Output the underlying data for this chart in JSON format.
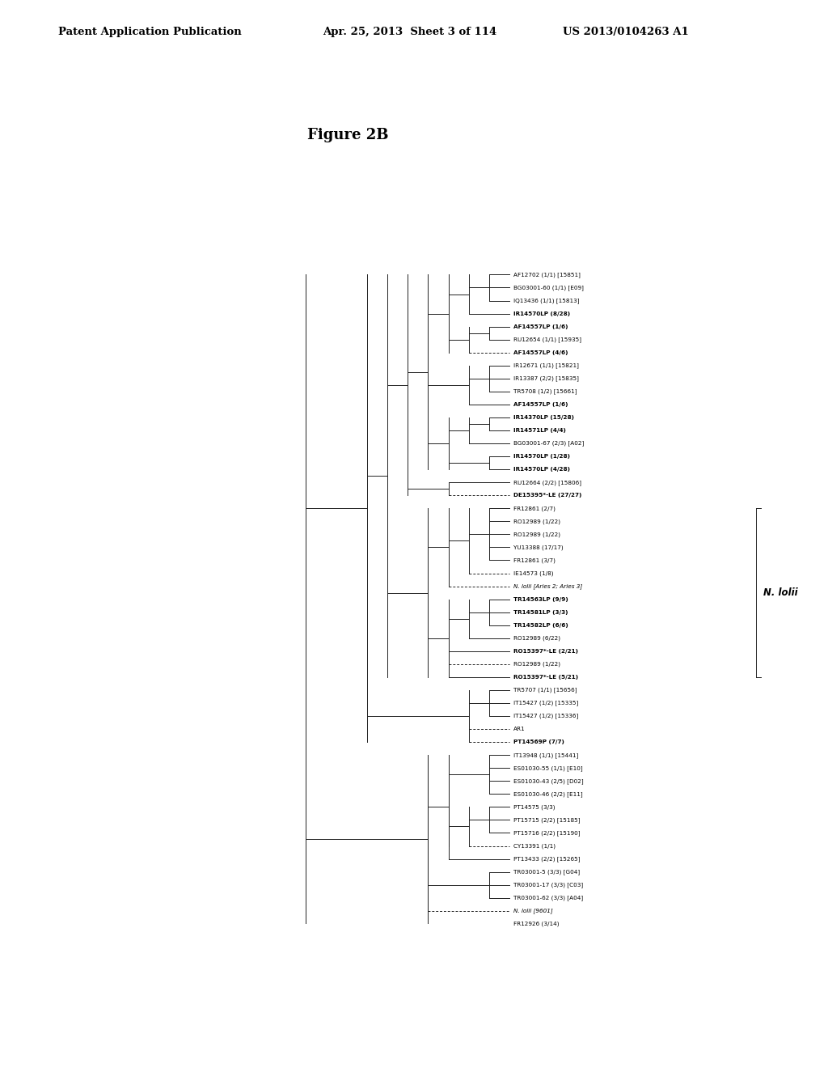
{
  "title": "Figure 2B",
  "header_left": "Patent Application Publication",
  "header_center": "Apr. 25, 2013  Sheet 3 of 114",
  "header_right": "US 2013/0104263 A1",
  "n_lolii_label": "N. lolii",
  "bg_color": "#c8c0ae",
  "line_color": "#222222",
  "taxa": [
    {
      "label": "AF12702 (1/1) [15851]",
      "bold": false,
      "italic": false,
      "dashed": false
    },
    {
      "label": "BG03001-60 (1/1) [E09]",
      "bold": false,
      "italic": false,
      "dashed": false
    },
    {
      "label": "IQ13436 (1/1) [15813]",
      "bold": false,
      "italic": false,
      "dashed": false
    },
    {
      "label": "IR14570LP (8/28)",
      "bold": true,
      "italic": false,
      "dashed": false
    },
    {
      "label": "AF14557LP (1/6)",
      "bold": true,
      "italic": false,
      "dashed": true
    },
    {
      "label": "RU12654 (1/1) [15935]",
      "bold": false,
      "italic": false,
      "dashed": false
    },
    {
      "label": "AF14557LP (4/6)",
      "bold": true,
      "italic": false,
      "dashed": false
    },
    {
      "label": "IR12671 (1/1) [15821]",
      "bold": false,
      "italic": false,
      "dashed": false
    },
    {
      "label": "IR13387 (2/2) [15835]",
      "bold": false,
      "italic": false,
      "dashed": false
    },
    {
      "label": "TR5708 (1/2) [15661]",
      "bold": false,
      "italic": false,
      "dashed": false
    },
    {
      "label": "AF14557LP (1/6)",
      "bold": true,
      "italic": false,
      "dashed": false
    },
    {
      "label": "IR14370LP (15/28)",
      "bold": true,
      "italic": false,
      "dashed": false
    },
    {
      "label": "IR14571LP (4/4)",
      "bold": true,
      "italic": false,
      "dashed": false
    },
    {
      "label": "BG03001-67 (2/3) [A02]",
      "bold": false,
      "italic": false,
      "dashed": false
    },
    {
      "label": "IR14570LP (1/28)",
      "bold": true,
      "italic": false,
      "dashed": false
    },
    {
      "label": "IR14570LP (4/28)",
      "bold": true,
      "italic": false,
      "dashed": false
    },
    {
      "label": "RU12664 (2/2) [15806]",
      "bold": false,
      "italic": false,
      "dashed": false
    },
    {
      "label": "DE15395*-LE (27/27)",
      "bold": true,
      "italic": false,
      "dashed": true
    },
    {
      "label": "FR12861 (2/7)",
      "bold": false,
      "italic": false,
      "dashed": false
    },
    {
      "label": "RO12989 (1/22)",
      "bold": false,
      "italic": false,
      "dashed": false
    },
    {
      "label": "RO12989 (1/22)",
      "bold": false,
      "italic": false,
      "dashed": false
    },
    {
      "label": "YU13388 (17/17)",
      "bold": false,
      "italic": false,
      "dashed": false
    },
    {
      "label": "FR12861 (3/7)",
      "bold": false,
      "italic": false,
      "dashed": false
    },
    {
      "label": "IE14573 (1/8)",
      "bold": false,
      "italic": false,
      "dashed": true
    },
    {
      "label": "N. lolii [Aries 2; Aries 3]",
      "bold": false,
      "italic": true,
      "dashed": true
    },
    {
      "label": "TR14563LP (9/9)",
      "bold": true,
      "italic": false,
      "dashed": false
    },
    {
      "label": "TR14581LP (3/3)",
      "bold": true,
      "italic": false,
      "dashed": false
    },
    {
      "label": "TR14582LP (6/6)",
      "bold": true,
      "italic": false,
      "dashed": false
    },
    {
      "label": "RO12989 (6/22)",
      "bold": false,
      "italic": false,
      "dashed": false
    },
    {
      "label": "RO15397*-LE (2/21)",
      "bold": true,
      "italic": false,
      "dashed": false
    },
    {
      "label": "RO12989 (1/22)",
      "bold": false,
      "italic": false,
      "dashed": true
    },
    {
      "label": "RO15397*-LE (5/21)",
      "bold": true,
      "italic": false,
      "dashed": false
    },
    {
      "label": "TR5707 (1/1) [15656]",
      "bold": false,
      "italic": false,
      "dashed": false
    },
    {
      "label": "IT15427 (1/2) [15335]",
      "bold": false,
      "italic": false,
      "dashed": false
    },
    {
      "label": "IT15427 (1/2) [15336]",
      "bold": false,
      "italic": false,
      "dashed": false
    },
    {
      "label": "AR1",
      "bold": false,
      "italic": false,
      "dashed": true
    },
    {
      "label": "PT14569P (7/7)",
      "bold": true,
      "italic": false,
      "dashed": true
    },
    {
      "label": "IT13948 (1/1) [15441]",
      "bold": false,
      "italic": false,
      "dashed": false
    },
    {
      "label": "ES01030-55 (1/1) [E10]",
      "bold": false,
      "italic": false,
      "dashed": false
    },
    {
      "label": "ES01030-43 (2/5) [D02]",
      "bold": false,
      "italic": false,
      "dashed": false
    },
    {
      "label": "ES01030-46 (2/2) [E11]",
      "bold": false,
      "italic": false,
      "dashed": false
    },
    {
      "label": "PT14575 (3/3)",
      "bold": false,
      "italic": false,
      "dashed": false
    },
    {
      "label": "PT15715 (2/2) [15185]",
      "bold": false,
      "italic": false,
      "dashed": false
    },
    {
      "label": "PT15716 (2/2) [15190]",
      "bold": false,
      "italic": false,
      "dashed": false
    },
    {
      "label": "CY13391 (1/1)",
      "bold": false,
      "italic": false,
      "dashed": true
    },
    {
      "label": "PT13433 (2/2) [15265]",
      "bold": false,
      "italic": false,
      "dashed": false
    },
    {
      "label": "TR03001-5 (3/3) [G04]",
      "bold": false,
      "italic": false,
      "dashed": false
    },
    {
      "label": "TR03001-17 (3/3) [C03]",
      "bold": false,
      "italic": false,
      "dashed": false
    },
    {
      "label": "TR03001-62 (3/3) [A04]",
      "bold": false,
      "italic": false,
      "dashed": false
    },
    {
      "label": "N. lolii [9601]",
      "bold": false,
      "italic": true,
      "dashed": true
    },
    {
      "label": "FR12926 (3/14)",
      "bold": false,
      "italic": false,
      "dashed": false
    }
  ]
}
